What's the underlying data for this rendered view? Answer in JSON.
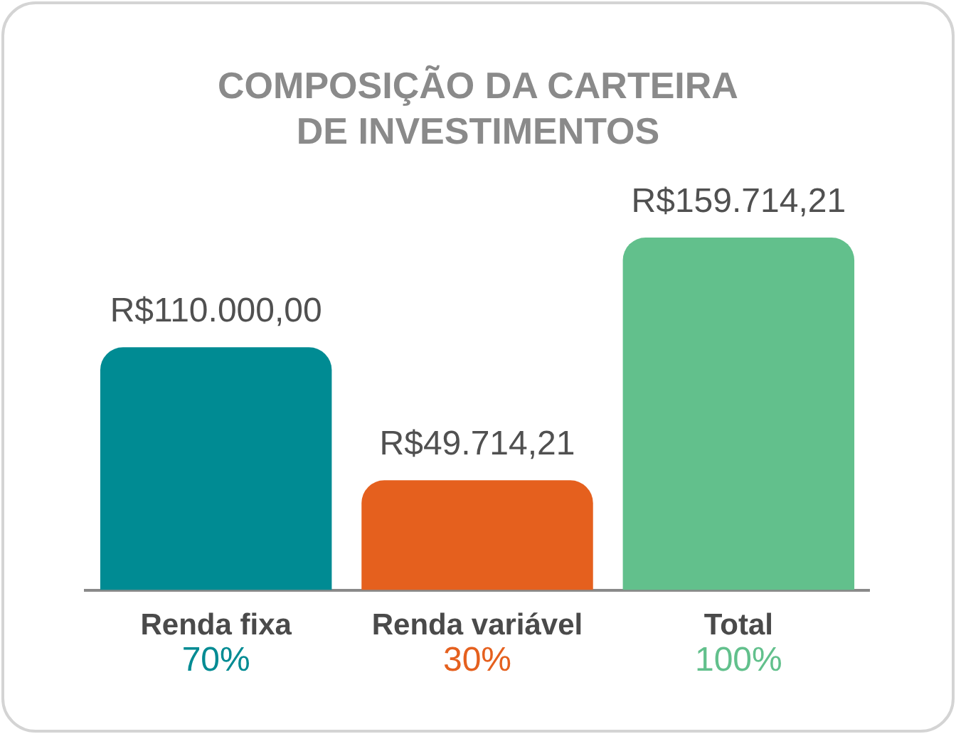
{
  "chart_data": {
    "type": "bar",
    "title": "COMPOSIÇÃO DA CARTEIRA DE INVESTIMENTOS",
    "categories": [
      "Renda fixa",
      "Renda variável",
      "Total"
    ],
    "values": [
      110000,
      49714.21,
      159714.21
    ],
    "colors": [
      "#008b93",
      "#e5601e",
      "#62c08c"
    ],
    "value_labels": [
      "R$110.000,00",
      "R$49.714,21",
      "R$159.714,21"
    ],
    "annotations": [
      "70%",
      "30%",
      "100%"
    ]
  }
}
